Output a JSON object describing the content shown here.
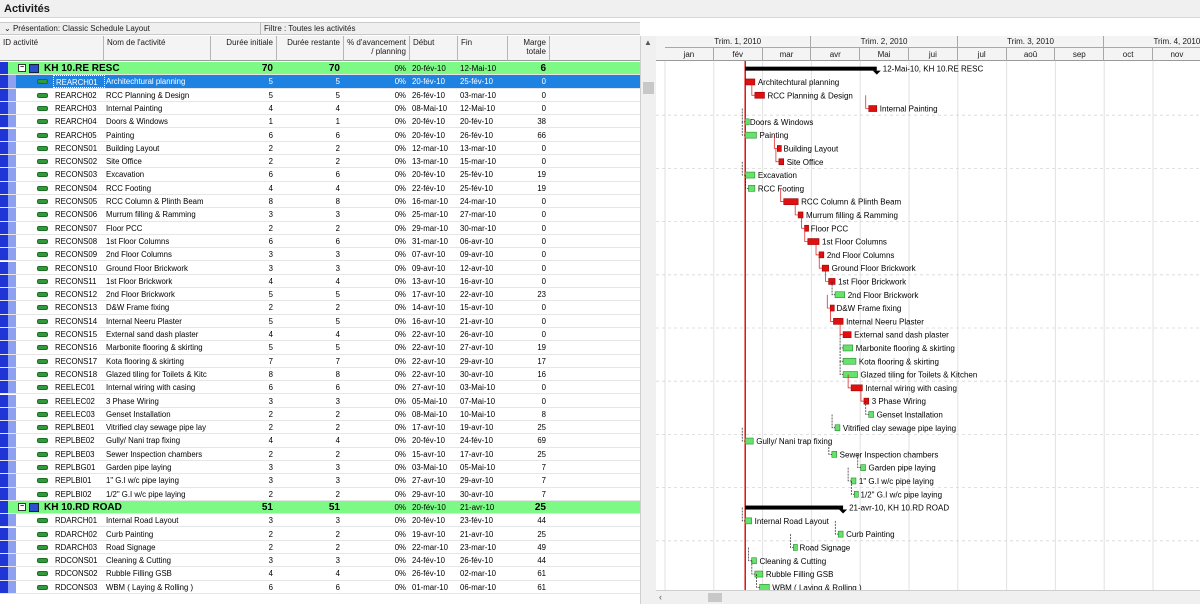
{
  "window_title": "Activités",
  "filterbar": {
    "presentation": "Présentation: Classic Schedule Layout",
    "filter": "Filtre : Toutes les activités"
  },
  "columns": {
    "id": "ID activité",
    "name": "Nom de l'activité",
    "orig_dur": "Durée initiale",
    "rem_dur": "Durée restante",
    "pct": "% d'avancement / planning",
    "start": "Début",
    "finish": "Fin",
    "float": "Marge totale"
  },
  "timescale": {
    "quarters": [
      "Trim. 1, 2010",
      "Trim. 2, 2010",
      "Trim. 3, 2010",
      "Trim. 4, 2010"
    ],
    "months": [
      "jan",
      "fév",
      "mar",
      "avr",
      "Mai",
      "jui",
      "jul",
      "aoû",
      "sep",
      "oct",
      "nov"
    ]
  },
  "rows": [
    {
      "type": "wbs",
      "name": "KH 10.RE  RESC",
      "od": "70",
      "rd": "70",
      "pct": "0%",
      "start": "20-fév-10",
      "finish": "12-Mai-10",
      "tf": "6",
      "gantt_label": "12-Mai-10, KH 10.RE  RESC"
    },
    {
      "type": "task",
      "selected": true,
      "id": "REARCH01",
      "name": "Architechtural planning",
      "od": "5",
      "rd": "5",
      "pct": "0%",
      "start": "20-fév-10",
      "finish": "25-fév-10",
      "tf": "0",
      "crit": true
    },
    {
      "type": "task",
      "id": "REARCH02",
      "name": "RCC Planning & Design",
      "od": "5",
      "rd": "5",
      "pct": "0%",
      "start": "26-fév-10",
      "finish": "03-mar-10",
      "tf": "0",
      "crit": true
    },
    {
      "type": "task",
      "id": "REARCH03",
      "name": "Internal Painting",
      "od": "4",
      "rd": "4",
      "pct": "0%",
      "start": "08-Mai-10",
      "finish": "12-Mai-10",
      "tf": "0",
      "crit": true
    },
    {
      "type": "task",
      "id": "REARCH04",
      "name": "Doors & Windows",
      "od": "1",
      "rd": "1",
      "pct": "0%",
      "start": "20-fév-10",
      "finish": "20-fév-10",
      "tf": "38",
      "crit": false
    },
    {
      "type": "task",
      "id": "REARCH05",
      "name": "Painting",
      "od": "6",
      "rd": "6",
      "pct": "0%",
      "start": "20-fév-10",
      "finish": "26-fév-10",
      "tf": "66",
      "crit": false
    },
    {
      "type": "task",
      "id": "RECONS01",
      "name": "Building Layout",
      "od": "2",
      "rd": "2",
      "pct": "0%",
      "start": "12-mar-10",
      "finish": "13-mar-10",
      "tf": "0",
      "crit": true
    },
    {
      "type": "task",
      "id": "RECONS02",
      "name": "Site Office",
      "od": "2",
      "rd": "2",
      "pct": "0%",
      "start": "13-mar-10",
      "finish": "15-mar-10",
      "tf": "0",
      "crit": true
    },
    {
      "type": "task",
      "id": "RECONS03",
      "name": "Excavation",
      "od": "6",
      "rd": "6",
      "pct": "0%",
      "start": "20-fév-10",
      "finish": "25-fév-10",
      "tf": "19",
      "crit": false
    },
    {
      "type": "task",
      "id": "RECONS04",
      "name": "RCC Footing",
      "od": "4",
      "rd": "4",
      "pct": "0%",
      "start": "22-fév-10",
      "finish": "25-fév-10",
      "tf": "19",
      "crit": false
    },
    {
      "type": "task",
      "id": "RECONS05",
      "name": "RCC Column & Plinth Beam",
      "od": "8",
      "rd": "8",
      "pct": "0%",
      "start": "16-mar-10",
      "finish": "24-mar-10",
      "tf": "0",
      "crit": true
    },
    {
      "type": "task",
      "id": "RECONS06",
      "name": "Murrum filling & Ramming",
      "od": "3",
      "rd": "3",
      "pct": "0%",
      "start": "25-mar-10",
      "finish": "27-mar-10",
      "tf": "0",
      "crit": true
    },
    {
      "type": "task",
      "id": "RECONS07",
      "name": "Floor PCC",
      "od": "2",
      "rd": "2",
      "pct": "0%",
      "start": "29-mar-10",
      "finish": "30-mar-10",
      "tf": "0",
      "crit": true
    },
    {
      "type": "task",
      "id": "RECONS08",
      "name": "1st Floor Columns",
      "od": "6",
      "rd": "6",
      "pct": "0%",
      "start": "31-mar-10",
      "finish": "06-avr-10",
      "tf": "0",
      "crit": true
    },
    {
      "type": "task",
      "id": "RECONS09",
      "name": "2nd Floor Columns",
      "od": "3",
      "rd": "3",
      "pct": "0%",
      "start": "07-avr-10",
      "finish": "09-avr-10",
      "tf": "0",
      "crit": true
    },
    {
      "type": "task",
      "id": "RECONS10",
      "name": "Ground Floor Brickwork",
      "od": "3",
      "rd": "3",
      "pct": "0%",
      "start": "09-avr-10",
      "finish": "12-avr-10",
      "tf": "0",
      "crit": true
    },
    {
      "type": "task",
      "id": "RECONS11",
      "name": "1st Floor Brickwork",
      "od": "4",
      "rd": "4",
      "pct": "0%",
      "start": "13-avr-10",
      "finish": "16-avr-10",
      "tf": "0",
      "crit": true
    },
    {
      "type": "task",
      "id": "RECONS12",
      "name": "2nd Floor Brickwork",
      "od": "5",
      "rd": "5",
      "pct": "0%",
      "start": "17-avr-10",
      "finish": "22-avr-10",
      "tf": "23",
      "crit": false
    },
    {
      "type": "task",
      "id": "RECONS13",
      "name": "D&W Frame fixing",
      "od": "2",
      "rd": "2",
      "pct": "0%",
      "start": "14-avr-10",
      "finish": "15-avr-10",
      "tf": "0",
      "crit": true
    },
    {
      "type": "task",
      "id": "RECONS14",
      "name": "Internal Neeru Plaster",
      "od": "5",
      "rd": "5",
      "pct": "0%",
      "start": "16-avr-10",
      "finish": "21-avr-10",
      "tf": "0",
      "crit": true
    },
    {
      "type": "task",
      "id": "RECONS15",
      "name": "External sand dash plaster",
      "od": "4",
      "rd": "4",
      "pct": "0%",
      "start": "22-avr-10",
      "finish": "26-avr-10",
      "tf": "0",
      "crit": true
    },
    {
      "type": "task",
      "id": "RECONS16",
      "name": "Marbonite flooring & skirting",
      "od": "5",
      "rd": "5",
      "pct": "0%",
      "start": "22-avr-10",
      "finish": "27-avr-10",
      "tf": "19",
      "crit": false
    },
    {
      "type": "task",
      "id": "RECONS17",
      "name": "Kota flooring & skirting",
      "od": "7",
      "rd": "7",
      "pct": "0%",
      "start": "22-avr-10",
      "finish": "29-avr-10",
      "tf": "17",
      "crit": false
    },
    {
      "type": "task",
      "id": "RECONS18",
      "name": "Glazed tiling for Toilets & Kitc",
      "od": "8",
      "rd": "8",
      "pct": "0%",
      "start": "22-avr-10",
      "finish": "30-avr-10",
      "tf": "16",
      "crit": false,
      "gantt_label": "Glazed tiling for Toilets & Kitchen"
    },
    {
      "type": "task",
      "id": "REELEC01",
      "name": "Internal wiring with casing",
      "od": "6",
      "rd": "6",
      "pct": "0%",
      "start": "27-avr-10",
      "finish": "03-Mai-10",
      "tf": "0",
      "crit": true
    },
    {
      "type": "task",
      "id": "REELEC02",
      "name": "3 Phase Wiring",
      "od": "3",
      "rd": "3",
      "pct": "0%",
      "start": "05-Mai-10",
      "finish": "07-Mai-10",
      "tf": "0",
      "crit": true
    },
    {
      "type": "task",
      "id": "REELEC03",
      "name": "Genset Installation",
      "od": "2",
      "rd": "2",
      "pct": "0%",
      "start": "08-Mai-10",
      "finish": "10-Mai-10",
      "tf": "8",
      "crit": false
    },
    {
      "type": "task",
      "id": "REPLBE01",
      "name": "Vitrified clay sewage pipe lay",
      "od": "2",
      "rd": "2",
      "pct": "0%",
      "start": "17-avr-10",
      "finish": "19-avr-10",
      "tf": "25",
      "crit": false,
      "gantt_label": "Vitrified clay sewage pipe laying"
    },
    {
      "type": "task",
      "id": "REPLBE02",
      "name": "Gully/ Nani trap fixing",
      "od": "4",
      "rd": "4",
      "pct": "0%",
      "start": "20-fév-10",
      "finish": "24-fév-10",
      "tf": "69",
      "crit": false
    },
    {
      "type": "task",
      "id": "REPLBE03",
      "name": "Sewer Inspection chambers",
      "od": "2",
      "rd": "2",
      "pct": "0%",
      "start": "15-avr-10",
      "finish": "17-avr-10",
      "tf": "25",
      "crit": false
    },
    {
      "type": "task",
      "id": "REPLBG01",
      "name": "Garden pipe laying",
      "od": "3",
      "rd": "3",
      "pct": "0%",
      "start": "03-Mai-10",
      "finish": "05-Mai-10",
      "tf": "7",
      "crit": false
    },
    {
      "type": "task",
      "id": "REPLBI01",
      "name": "1\" G.I w/c pipe laying",
      "od": "3",
      "rd": "3",
      "pct": "0%",
      "start": "27-avr-10",
      "finish": "29-avr-10",
      "tf": "7",
      "crit": false
    },
    {
      "type": "task",
      "id": "REPLBI02",
      "name": "1/2\" G.I w/c pipe laying",
      "od": "2",
      "rd": "2",
      "pct": "0%",
      "start": "29-avr-10",
      "finish": "30-avr-10",
      "tf": "7",
      "crit": false
    },
    {
      "type": "wbs",
      "name": "KH 10.RD  ROAD",
      "od": "51",
      "rd": "51",
      "pct": "0%",
      "start": "20-fév-10",
      "finish": "21-avr-10",
      "tf": "25",
      "gantt_label": "21-avr-10, KH 10.RD  ROAD"
    },
    {
      "type": "task",
      "id": "RDARCH01",
      "name": "Internal Road Layout",
      "od": "3",
      "rd": "3",
      "pct": "0%",
      "start": "20-fév-10",
      "finish": "23-fév-10",
      "tf": "44",
      "crit": false
    },
    {
      "type": "task",
      "id": "RDARCH02",
      "name": "Curb Painting",
      "od": "2",
      "rd": "2",
      "pct": "0%",
      "start": "19-avr-10",
      "finish": "21-avr-10",
      "tf": "25",
      "crit": false
    },
    {
      "type": "task",
      "id": "RDARCH03",
      "name": "Road Signage",
      "od": "2",
      "rd": "2",
      "pct": "0%",
      "start": "22-mar-10",
      "finish": "23-mar-10",
      "tf": "49",
      "crit": false
    },
    {
      "type": "task",
      "id": "RDCONS01",
      "name": "Cleaning & Cutting",
      "od": "3",
      "rd": "3",
      "pct": "0%",
      "start": "24-fév-10",
      "finish": "26-fév-10",
      "tf": "44",
      "crit": false
    },
    {
      "type": "task",
      "id": "RDCONS02",
      "name": "Rubble Filling GSB",
      "od": "4",
      "rd": "4",
      "pct": "0%",
      "start": "26-fév-10",
      "finish": "02-mar-10",
      "tf": "61",
      "crit": false
    },
    {
      "type": "task",
      "id": "RDCONS03",
      "name": "WBM ( Laying & Rolling )",
      "od": "6",
      "rd": "6",
      "pct": "0%",
      "start": "01-mar-10",
      "finish": "06-mar-10",
      "tf": "61",
      "crit": false
    }
  ],
  "colors": {
    "wbs_row": "#7dfa86",
    "selected": "#1e82e3",
    "critical_bar": "#e01010",
    "normal_bar": "#66e36b",
    "summary_bar": "#000000",
    "left_strip": "#1f35d6"
  }
}
